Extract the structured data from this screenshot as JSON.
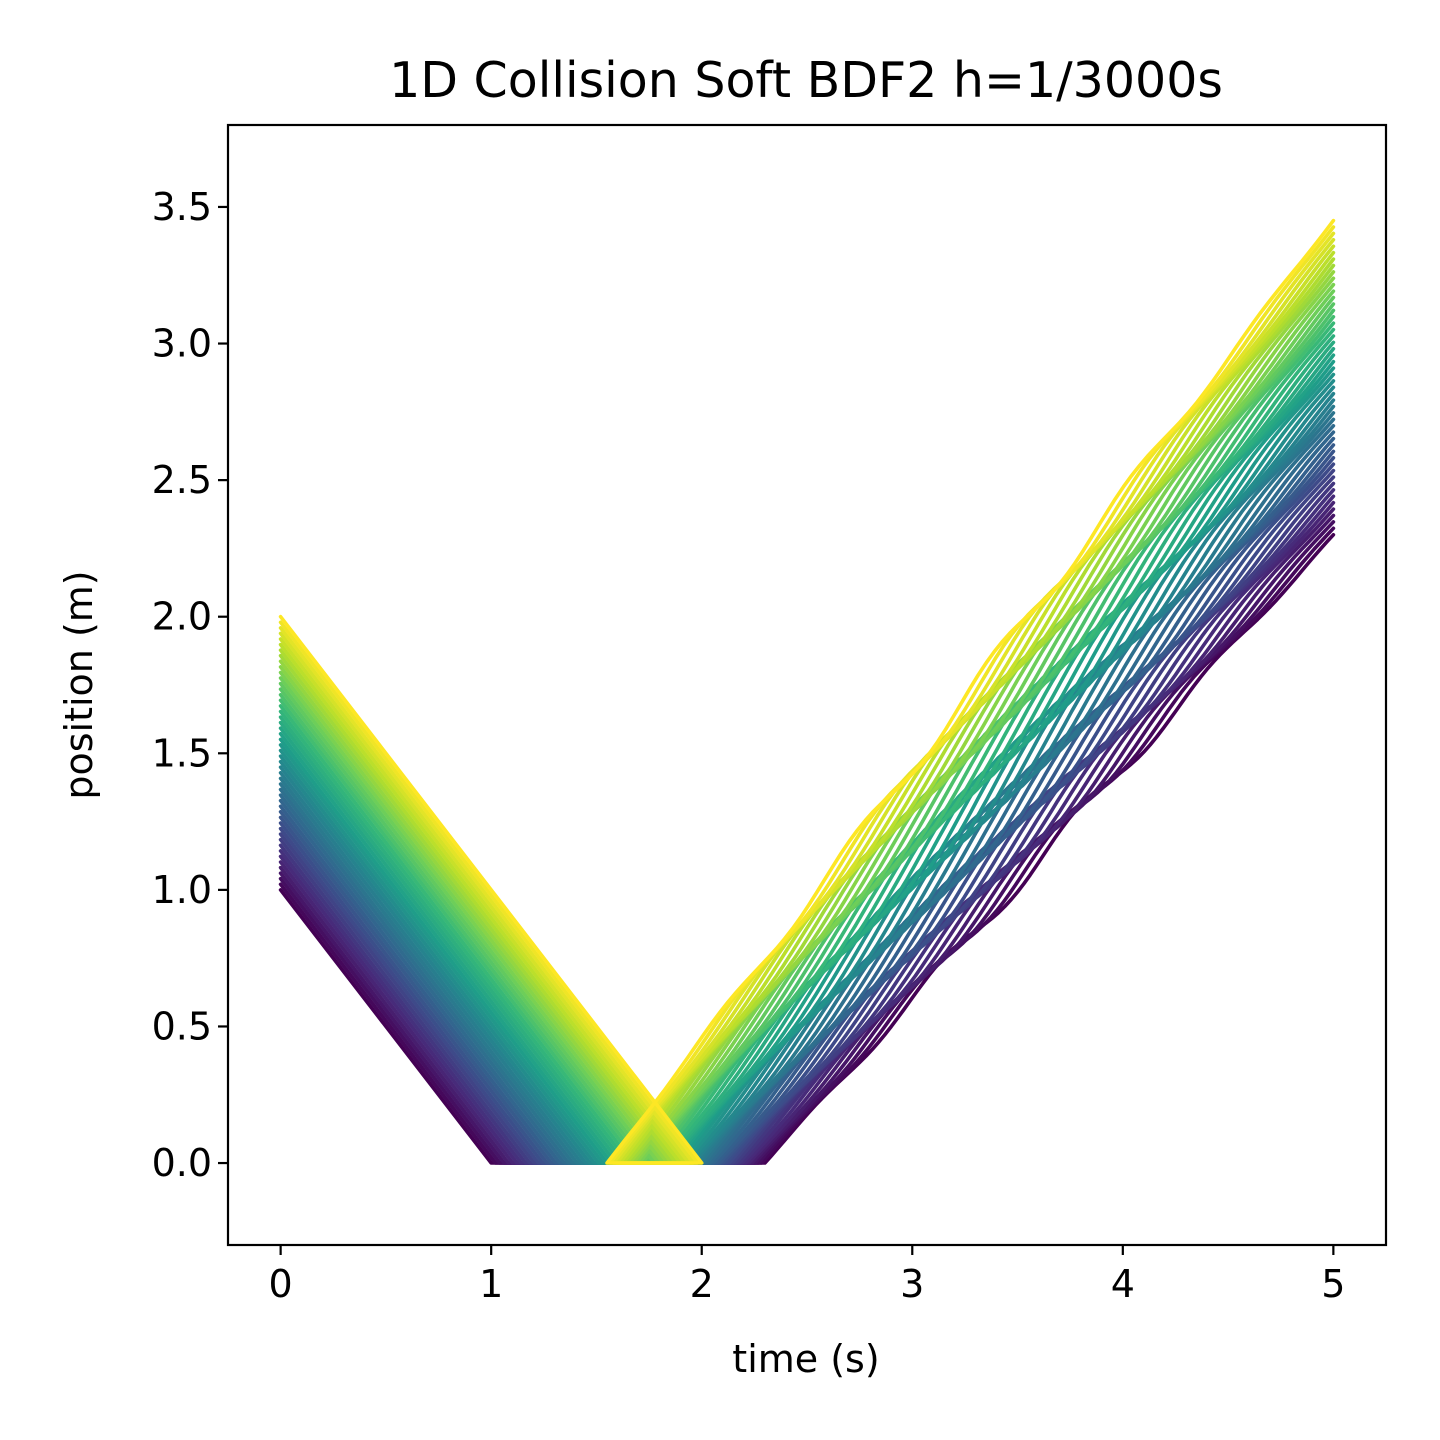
{
  "chart_data": {
    "type": "line",
    "title": "1D Collision Soft BDF2 h=1/3000s",
    "xlabel": "time (s)",
    "ylabel": "position (m)",
    "xlim": [
      -0.25,
      5.25
    ],
    "ylim": [
      -0.3,
      3.8
    ],
    "xticks": [
      0,
      1,
      2,
      3,
      4,
      5
    ],
    "xtick_labels": [
      "0",
      "1",
      "2",
      "3",
      "4",
      "5"
    ],
    "yticks": [
      0.0,
      0.5,
      1.0,
      1.5,
      2.0,
      2.5,
      3.0,
      3.5
    ],
    "ytick_labels": [
      "0.0",
      "0.5",
      "1.0",
      "1.5",
      "2.0",
      "2.5",
      "3.0",
      "3.5"
    ],
    "grid": false,
    "legend": "none",
    "colormap": "viridis",
    "colormap_stops": [
      "#440154",
      "#482878",
      "#3e4989",
      "#31688e",
      "#26828e",
      "#1f9e89",
      "#35b779",
      "#6ece58",
      "#b5de2b",
      "#fde725"
    ],
    "series_count": 50,
    "series_family": {
      "initial_position_range": [
        1.0,
        2.0
      ],
      "initial_velocity": -1.0,
      "contact_position": 0.0,
      "contact_start_time_range": [
        1.0,
        2.0
      ],
      "release_time_range": [
        2.3,
        1.55
      ],
      "final_position_range": [
        2.3,
        3.45
      ],
      "final_time": 5.0
    }
  }
}
